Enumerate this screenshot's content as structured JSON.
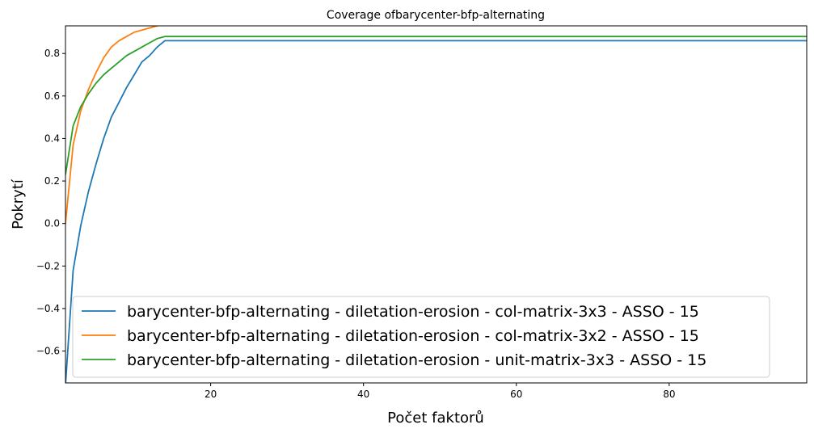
{
  "chart_data": {
    "type": "line",
    "title": "Coverage ofbarycenter-bfp-alternating",
    "xlabel": "Počet faktorů",
    "ylabel": "Pokrytí",
    "xlim": [
      1,
      98
    ],
    "ylim": [
      -0.75,
      0.93
    ],
    "xticks": [
      20,
      40,
      60,
      80
    ],
    "xtick_labels": [
      "20",
      "40",
      "60",
      "80"
    ],
    "yticks": [
      -0.6,
      -0.4,
      -0.2,
      0.0,
      0.2,
      0.4,
      0.6,
      0.8
    ],
    "ytick_labels": [
      "−0.6",
      "−0.4",
      "−0.2",
      "0.0",
      "0.2",
      "0.4",
      "0.6",
      "0.8"
    ],
    "grid": false,
    "legend_position": "lower-left",
    "series": [
      {
        "name": "barycenter-bfp-alternating - diletation-erosion - col-matrix-3x3 - ASSO - 15",
        "color": "#1f77b4",
        "x": [
          1,
          2,
          3,
          4,
          5,
          6,
          7,
          8,
          9,
          10,
          11,
          12,
          13,
          14,
          20,
          40,
          60,
          80,
          98
        ],
        "y": [
          -0.76,
          -0.22,
          -0.01,
          0.15,
          0.28,
          0.4,
          0.5,
          0.57,
          0.64,
          0.7,
          0.76,
          0.79,
          0.83,
          0.86,
          0.86,
          0.86,
          0.86,
          0.86,
          0.86
        ]
      },
      {
        "name": "barycenter-bfp-alternating - diletation-erosion - col-matrix-3x2 - ASSO - 15",
        "color": "#ff7f0e",
        "x": [
          1,
          2,
          3,
          4,
          5,
          6,
          7,
          8,
          9,
          10,
          11,
          12,
          13,
          14,
          15,
          20,
          40,
          60,
          80,
          98
        ],
        "y": [
          0.0,
          0.37,
          0.53,
          0.63,
          0.71,
          0.78,
          0.83,
          0.86,
          0.88,
          0.9,
          0.91,
          0.92,
          0.93,
          0.94,
          0.95,
          0.97,
          0.98,
          0.98,
          0.98,
          0.98
        ]
      },
      {
        "name": "barycenter-bfp-alternating - diletation-erosion - unit-matrix-3x3 - ASSO - 15",
        "color": "#2ca02c",
        "x": [
          1,
          2,
          3,
          4,
          5,
          6,
          7,
          8,
          9,
          10,
          11,
          12,
          13,
          14,
          20,
          40,
          60,
          80,
          98
        ],
        "y": [
          0.23,
          0.46,
          0.55,
          0.61,
          0.66,
          0.7,
          0.73,
          0.76,
          0.79,
          0.81,
          0.83,
          0.85,
          0.87,
          0.88,
          0.88,
          0.88,
          0.88,
          0.88,
          0.88
        ]
      }
    ]
  }
}
